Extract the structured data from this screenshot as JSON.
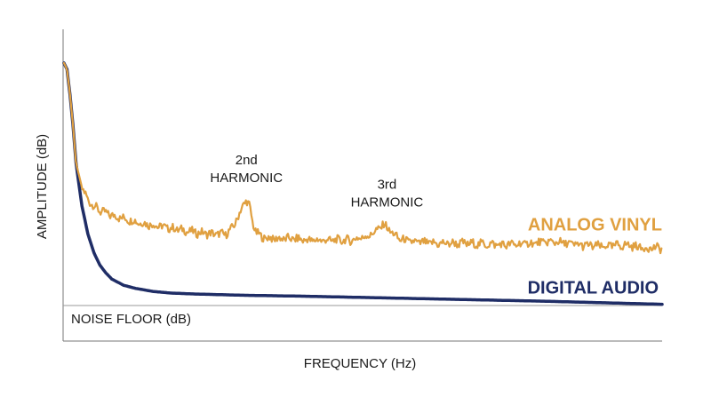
{
  "chart_data": {
    "type": "line",
    "xlabel": "FREQUENCY (Hz)",
    "ylabel": "AMPLITUDE (dB)",
    "xlim": [
      0,
      100
    ],
    "ylim": [
      0,
      100
    ],
    "grid": false,
    "reference_line": {
      "label": "NOISE FLOOR (dB)",
      "y": 12
    },
    "series": [
      {
        "name": "ANALOG VINYL",
        "color": "#E0A040",
        "x": [
          0,
          0.5,
          1,
          1.5,
          2,
          3,
          4,
          5,
          6,
          8,
          10,
          13,
          16,
          19,
          22,
          25,
          27,
          28,
          29,
          30,
          30.5,
          31,
          31.5,
          32,
          33,
          35,
          38,
          41,
          44,
          48,
          51,
          52.5,
          53.5,
          54.5,
          56,
          58,
          62,
          66,
          70,
          74,
          78,
          82,
          86,
          90,
          94,
          97,
          100
        ],
        "y": [
          90,
          88,
          80,
          70,
          58,
          50,
          46,
          44,
          42.5,
          41,
          40,
          38.5,
          37.5,
          36.5,
          35.5,
          35,
          35,
          36.5,
          40,
          44.5,
          46,
          44,
          39,
          36,
          34,
          33.5,
          33.5,
          33,
          33,
          33,
          34.5,
          36.5,
          38.2,
          36,
          33.5,
          32.5,
          32,
          32,
          31.8,
          31.5,
          32,
          32.5,
          31.5,
          31,
          31.5,
          30.5,
          30.5
        ]
      },
      {
        "name": "DIGITAL AUDIO",
        "color": "#1F2D66",
        "x": [
          0,
          0.5,
          1,
          1.5,
          2,
          3,
          4,
          5,
          6,
          7,
          8,
          10,
          12,
          15,
          18,
          22,
          26,
          30,
          40,
          50,
          60,
          70,
          80,
          90,
          100
        ],
        "y": [
          90,
          88,
          80,
          70,
          58,
          44,
          35,
          29,
          25,
          22.5,
          20.5,
          18.5,
          17.5,
          16.5,
          16,
          15.7,
          15.5,
          15.3,
          15,
          14.6,
          14.2,
          13.8,
          13.4,
          12.9,
          12.4
        ]
      }
    ],
    "annotations": [
      {
        "line1": "2nd",
        "line2": "HARMONIC",
        "x": 30.5,
        "y": 46
      },
      {
        "line1": "3rd",
        "line2": "HARMONIC",
        "x": 54,
        "y": 38.2
      }
    ]
  }
}
